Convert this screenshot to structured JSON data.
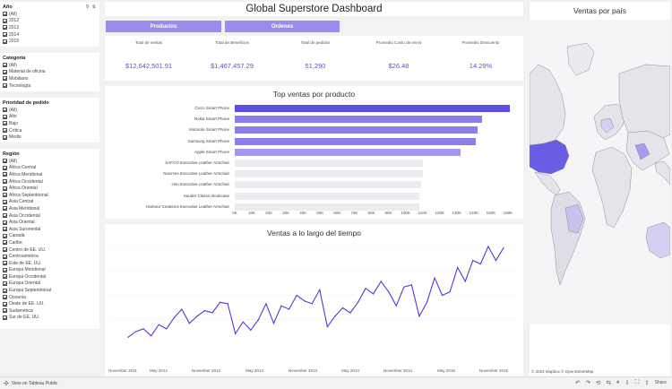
{
  "filters": {
    "year": {
      "title": "Año",
      "items": [
        "(All)",
        "2012",
        "2013",
        "2014",
        "2015"
      ]
    },
    "category": {
      "title": "Categoría",
      "items": [
        "(All)",
        "Material de oficina",
        "Mobiliario",
        "Tecnología"
      ]
    },
    "priority": {
      "title": "Prioridad de pedido",
      "items": [
        "(All)",
        "Alto",
        "Bajo",
        "Crítica",
        "Medio"
      ]
    },
    "region": {
      "title": "Región",
      "items": [
        "(All)",
        "África Central",
        "África Meridional",
        "África Occidental",
        "África Oriental",
        "África Septentrional",
        "Asia Central",
        "Asia Meridional",
        "Asia Occidental",
        "Asia Oriental",
        "Asia Suroriental",
        "Canadá",
        "Caribe",
        "Centro de EE. UU.",
        "Centroamérica",
        "Este de EE. UU.",
        "Europa Meridional",
        "Europa Occidental",
        "Europa Oriental",
        "Europa Septentrional",
        "Oceanía",
        "Oeste de EE. UU.",
        "Sudamérica",
        "Sur de EE. UU."
      ]
    }
  },
  "header": {
    "title": "Global Superstore Dashboard",
    "btn_products": "Productos",
    "btn_orders": "Ordenes"
  },
  "kpis": [
    {
      "label": "Total de ventas",
      "value": "$12,642,501.91"
    },
    {
      "label": "Total de Beneficios",
      "value": "$1,467,457.29"
    },
    {
      "label": "Total de pedidos",
      "value": "51,290"
    },
    {
      "label": "Promedio Costo de envío",
      "value": "$26.48"
    },
    {
      "label": "Promedio Descuento",
      "value": "14.29%"
    }
  ],
  "map": {
    "title": "Ventas por país",
    "attribution": "© 2024 Mapbox  © OpenStreetMap"
  },
  "footer": {
    "view_label": "View on Tableau Public",
    "share_label": "Share"
  },
  "colors": {
    "accent": "#5b4ee0",
    "button": "#9a8ced",
    "bar_light": "#ebebf0"
  },
  "chart_data": [
    {
      "type": "bar",
      "title": "Top ventas por producto",
      "categories": [
        "Cisco Smart Phone",
        "Nokia Smart Phone",
        "Motorola Smart Phone",
        "Samsung Smart Phone",
        "Apple Smart Phone",
        "SAFCO Executive Leather Armchair",
        "Novimex Executive Leather Armchair",
        "Hon Executive Leather Armchair",
        "Sauder Classic Bookcase",
        "Harbour Creations Executive Leather Armchair"
      ],
      "values": [
        161000,
        145000,
        142000,
        141000,
        132000,
        110000,
        110000,
        109000,
        108000,
        108000
      ],
      "xticks": [
        "0K",
        "10K",
        "20K",
        "30K",
        "40K",
        "50K",
        "60K",
        "70K",
        "80K",
        "90K",
        "100K",
        "110K",
        "120K",
        "130K",
        "140K",
        "150K",
        "160K"
      ],
      "xlim": [
        0,
        160000
      ]
    },
    {
      "type": "line",
      "title": "Ventas a lo largo del tiempo",
      "x": [
        "2011-11",
        "2011-12",
        "2012-01",
        "2012-02",
        "2012-03",
        "2012-04",
        "2012-05",
        "2012-06",
        "2012-07",
        "2012-08",
        "2012-09",
        "2012-10",
        "2012-11",
        "2012-12",
        "2013-01",
        "2013-02",
        "2013-03",
        "2013-04",
        "2013-05",
        "2013-06",
        "2013-07",
        "2013-08",
        "2013-09",
        "2013-10",
        "2013-11",
        "2013-12",
        "2014-01",
        "2014-02",
        "2014-03",
        "2014-04",
        "2014-05",
        "2014-06",
        "2014-07",
        "2014-08",
        "2014-09",
        "2014-10",
        "2014-11",
        "2014-12",
        "2015-01",
        "2015-02",
        "2015-03",
        "2015-04",
        "2015-05",
        "2015-06",
        "2015-07",
        "2015-08",
        "2015-09",
        "2015-10",
        "2015-11",
        "2015-12"
      ],
      "values": [
        10,
        18,
        22,
        12,
        28,
        22,
        38,
        50,
        30,
        40,
        48,
        45,
        60,
        58,
        15,
        32,
        20,
        35,
        58,
        30,
        55,
        50,
        70,
        62,
        58,
        78,
        25,
        40,
        52,
        45,
        60,
        80,
        72,
        90,
        75,
        55,
        82,
        85,
        40,
        60,
        95,
        70,
        75,
        110,
        90,
        120,
        115,
        140,
        120,
        138
      ],
      "xticks": [
        "November 2011",
        "May 2012",
        "November 2012",
        "May 2013",
        "November 2013",
        "May 2014",
        "November 2014",
        "May 2015",
        "November 2015"
      ]
    }
  ]
}
